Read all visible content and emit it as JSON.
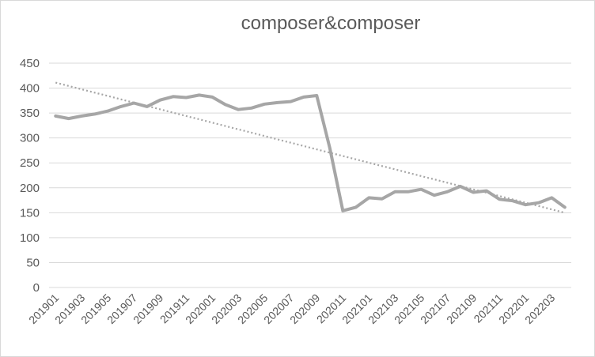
{
  "chart_data": {
    "type": "line",
    "title": "composer&composer",
    "xlabel": "",
    "ylabel": "",
    "ylim": [
      0,
      450
    ],
    "yticks": [
      0,
      50,
      100,
      150,
      200,
      250,
      300,
      350,
      400,
      450
    ],
    "grid": true,
    "legend": "none",
    "x": [
      "201901",
      "201902",
      "201903",
      "201904",
      "201905",
      "201906",
      "201907",
      "201908",
      "201909",
      "201910",
      "201911",
      "201912",
      "202001",
      "202002",
      "202003",
      "202004",
      "202005",
      "202006",
      "202007",
      "202008",
      "202009",
      "202010",
      "202011",
      "202012",
      "202101",
      "202102",
      "202103",
      "202104",
      "202105",
      "202106",
      "202107",
      "202108",
      "202109",
      "202110",
      "202111",
      "202112",
      "202201",
      "202202",
      "202203",
      "202204"
    ],
    "xtick_labels": [
      "201901",
      "201903",
      "201905",
      "201907",
      "201909",
      "201911",
      "202001",
      "202003",
      "202005",
      "202007",
      "202009",
      "202011",
      "202101",
      "202103",
      "202105",
      "202107",
      "202109",
      "202111",
      "202201",
      "202203"
    ],
    "series": [
      {
        "values": [
          344,
          339,
          344,
          348,
          354,
          363,
          370,
          363,
          376,
          383,
          381,
          386,
          382,
          367,
          357,
          360,
          368,
          371,
          373,
          382,
          385,
          280,
          154,
          161,
          180,
          178,
          192,
          192,
          197,
          185,
          192,
          203,
          191,
          194,
          177,
          174,
          166,
          170,
          180,
          161
        ],
        "color": "#a6a6a6"
      }
    ],
    "trendline": {
      "type": "linear",
      "style": "dotted",
      "color": "#a6a6a6",
      "start": 411,
      "end": 150
    }
  }
}
